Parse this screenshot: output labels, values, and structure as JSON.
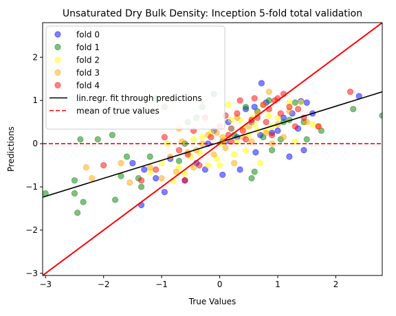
{
  "chart_data": {
    "type": "scatter",
    "title": "Unsaturated Dry Bulk Density: Inception 5-fold total validation",
    "xlabel": "True Values",
    "ylabel": "Predictions",
    "xlim": [
      -3.05,
      2.8
    ],
    "ylim": [
      -3.05,
      2.8
    ],
    "xticks": [
      -3,
      -2,
      -1,
      0,
      1,
      2
    ],
    "yticks": [
      -3,
      -2,
      -1,
      0,
      1,
      2
    ],
    "xtick_labels": [
      "−3",
      "−2",
      "−1",
      "0",
      "1",
      "2"
    ],
    "ytick_labels": [
      "−3",
      "−2",
      "−1",
      "0",
      "1",
      "2"
    ],
    "grid": false,
    "legend_position": "top-left",
    "series": [
      {
        "name": "fold 0",
        "color": "#0000ff",
        "points": [
          [
            -1.35,
            -1.42
          ],
          [
            -1.3,
            -0.6
          ],
          [
            -1.1,
            -0.8
          ],
          [
            -0.95,
            -1.12
          ],
          [
            -0.85,
            -0.35
          ],
          [
            -0.6,
            -0.85
          ],
          [
            -0.4,
            -0.45
          ],
          [
            -0.25,
            -0.6
          ],
          [
            -0.1,
            0.3
          ],
          [
            0.05,
            -0.72
          ],
          [
            0.1,
            0.05
          ],
          [
            0.2,
            0.35
          ],
          [
            0.3,
            0.15
          ],
          [
            0.35,
            -0.6
          ],
          [
            0.45,
            0.8
          ],
          [
            0.55,
            0.5
          ],
          [
            0.62,
            -0.2
          ],
          [
            0.7,
            0.2
          ],
          [
            0.72,
            1.4
          ],
          [
            0.8,
            0.95
          ],
          [
            0.9,
            0.25
          ],
          [
            1.0,
            0.3
          ],
          [
            1.1,
            0.6
          ],
          [
            1.25,
            0.7
          ],
          [
            1.35,
            0.35
          ],
          [
            1.4,
            0.98
          ],
          [
            1.45,
            -0.15
          ],
          [
            1.5,
            0.95
          ],
          [
            1.6,
            0.7
          ],
          [
            2.4,
            1.1
          ],
          [
            -1.5,
            -0.45
          ],
          [
            -0.2,
            0.0
          ],
          [
            0.15,
            0.5
          ],
          [
            0.6,
            0.85
          ],
          [
            1.2,
            -0.3
          ]
        ]
      },
      {
        "name": "fold 1",
        "color": "#008000",
        "points": [
          [
            -3.0,
            -1.15
          ],
          [
            -2.5,
            -1.15
          ],
          [
            -2.5,
            -0.85
          ],
          [
            -2.45,
            -1.6
          ],
          [
            -2.4,
            0.1
          ],
          [
            -2.35,
            -1.35
          ],
          [
            -2.1,
            0.1
          ],
          [
            -1.85,
            0.2
          ],
          [
            -1.8,
            -1.3
          ],
          [
            -1.7,
            -0.75
          ],
          [
            -1.6,
            -0.3
          ],
          [
            -1.4,
            -0.8
          ],
          [
            -1.35,
            -1.0
          ],
          [
            -1.2,
            -0.3
          ],
          [
            -1.1,
            1.05
          ],
          [
            -0.7,
            -0.4
          ],
          [
            -0.6,
            0.0
          ],
          [
            -0.55,
            0.5
          ],
          [
            -0.4,
            0.6
          ],
          [
            -0.3,
            0.85
          ],
          [
            -0.1,
            1.15
          ],
          [
            0.05,
            0.05
          ],
          [
            0.25,
            0.2
          ],
          [
            0.45,
            0.85
          ],
          [
            0.6,
            -0.65
          ],
          [
            0.65,
            0.75
          ],
          [
            0.75,
            0.15
          ],
          [
            0.85,
            1.0
          ],
          [
            0.9,
            -0.15
          ],
          [
            1.05,
            0.1
          ],
          [
            1.1,
            0.5
          ],
          [
            1.2,
            0.55
          ],
          [
            1.3,
            0.95
          ],
          [
            1.45,
            0.5
          ],
          [
            1.5,
            0.1
          ],
          [
            2.3,
            0.8
          ],
          [
            2.8,
            0.65
          ],
          [
            0.55,
            -0.8
          ],
          [
            -0.95,
            0.85
          ],
          [
            1.75,
            0.3
          ]
        ]
      },
      {
        "name": "fold 2",
        "color": "#ffff00",
        "points": [
          [
            -1.2,
            -0.65
          ],
          [
            -1.0,
            -0.45
          ],
          [
            -0.8,
            -0.85
          ],
          [
            -0.7,
            -0.55
          ],
          [
            -0.6,
            -0.7
          ],
          [
            -0.5,
            -0.3
          ],
          [
            -0.45,
            0.1
          ],
          [
            -0.35,
            -0.2
          ],
          [
            -0.3,
            0.15
          ],
          [
            -0.2,
            -0.5
          ],
          [
            -0.15,
            0.25
          ],
          [
            -0.05,
            -0.35
          ],
          [
            0.0,
            -0.5
          ],
          [
            0.05,
            0.0
          ],
          [
            0.1,
            0.1
          ],
          [
            0.2,
            0.55
          ],
          [
            0.25,
            -0.25
          ],
          [
            0.3,
            0.05
          ],
          [
            0.35,
            0.55
          ],
          [
            0.4,
            0.35
          ],
          [
            0.45,
            -0.15
          ],
          [
            0.5,
            0.2
          ],
          [
            0.55,
            0.6
          ],
          [
            0.6,
            0.45
          ],
          [
            0.65,
            0.3
          ],
          [
            0.7,
            -0.45
          ],
          [
            0.8,
            0.3
          ],
          [
            0.85,
            0.65
          ],
          [
            0.9,
            0.4
          ],
          [
            1.0,
            0.6
          ],
          [
            1.2,
            0.95
          ],
          [
            1.3,
            0.05
          ],
          [
            1.4,
            0.95
          ],
          [
            1.6,
            0.45
          ],
          [
            -0.9,
            0.0
          ],
          [
            0.15,
            0.9
          ],
          [
            0.75,
            0.9
          ]
        ]
      },
      {
        "name": "fold 3",
        "color": "#ffa500",
        "points": [
          [
            -2.3,
            -0.55
          ],
          [
            -2.2,
            -0.8
          ],
          [
            -1.7,
            -0.45
          ],
          [
            -1.55,
            -0.9
          ],
          [
            -1.2,
            -0.55
          ],
          [
            -1.0,
            -0.8
          ],
          [
            -0.85,
            -0.3
          ],
          [
            -0.75,
            -0.65
          ],
          [
            -0.65,
            0.05
          ],
          [
            -0.55,
            -0.2
          ],
          [
            -0.45,
            -0.55
          ],
          [
            -0.4,
            -0.15
          ],
          [
            -0.3,
            0.0
          ],
          [
            -0.2,
            0.2
          ],
          [
            -0.1,
            -0.25
          ],
          [
            -0.05,
            0.25
          ],
          [
            0.05,
            0.15
          ],
          [
            0.1,
            -0.1
          ],
          [
            0.2,
            0.35
          ],
          [
            0.3,
            0.6
          ],
          [
            0.4,
            0.15
          ],
          [
            0.5,
            0.4
          ],
          [
            0.55,
            0.05
          ],
          [
            0.65,
            0.7
          ],
          [
            0.8,
            0.25
          ],
          [
            0.9,
            0.0
          ],
          [
            1.0,
            0.45
          ],
          [
            1.1,
            0.15
          ],
          [
            1.2,
            0.75
          ],
          [
            1.5,
            0.5
          ],
          [
            1.7,
            0.4
          ],
          [
            -0.7,
            0.35
          ],
          [
            0.25,
            -0.45
          ],
          [
            0.85,
            1.2
          ]
        ]
      },
      {
        "name": "fold 4",
        "color": "#ff0000",
        "points": [
          [
            -2.0,
            -0.5
          ],
          [
            -1.35,
            -0.85
          ],
          [
            -1.1,
            -0.6
          ],
          [
            -0.95,
            0.15
          ],
          [
            -0.7,
            -0.15
          ],
          [
            -0.55,
            -0.25
          ],
          [
            -0.45,
            0.3
          ],
          [
            -0.35,
            -0.5
          ],
          [
            -0.25,
            0.6
          ],
          [
            -0.15,
            0.15
          ],
          [
            0.0,
            0.4
          ],
          [
            0.1,
            0.65
          ],
          [
            0.15,
            0.2
          ],
          [
            0.2,
            0.05
          ],
          [
            0.3,
            0.7
          ],
          [
            0.35,
            1.0
          ],
          [
            0.4,
            0.3
          ],
          [
            0.45,
            0.1
          ],
          [
            0.55,
            0.55
          ],
          [
            0.6,
            1.05
          ],
          [
            0.65,
            0.6
          ],
          [
            0.75,
            0.9
          ],
          [
            0.8,
            0.5
          ],
          [
            0.85,
            0.8
          ],
          [
            0.9,
            0.2
          ],
          [
            0.95,
            1.0
          ],
          [
            1.05,
            0.7
          ],
          [
            1.1,
            1.15
          ],
          [
            1.2,
            0.85
          ],
          [
            1.3,
            0.4
          ],
          [
            1.35,
            0.8
          ],
          [
            1.45,
            0.6
          ],
          [
            1.7,
            0.4
          ],
          [
            2.25,
            1.2
          ],
          [
            1.0,
            1.05
          ],
          [
            -0.6,
            -0.85
          ]
        ]
      }
    ],
    "lines": [
      {
        "name": "lin.regr. fit through predictions",
        "color": "#000000",
        "style": "solid",
        "x": [
          -3.05,
          2.8
        ],
        "y": [
          -1.24,
          1.2
        ]
      },
      {
        "name": "mean of true values",
        "color": "#ff0000",
        "style": "dashed",
        "x": [
          -3.05,
          2.8
        ],
        "y": [
          0.0,
          0.0
        ]
      },
      {
        "name": "",
        "color": "#ff0000",
        "style": "solid",
        "x": [
          -3.05,
          2.8
        ],
        "y": [
          -3.05,
          2.8
        ]
      }
    ]
  }
}
